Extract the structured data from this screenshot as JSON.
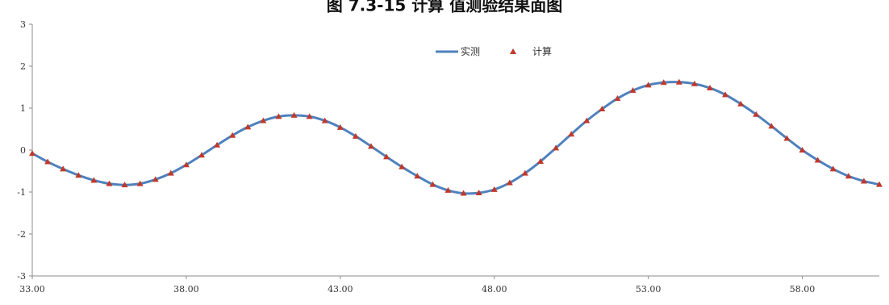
{
  "chart_data": {
    "type": "line",
    "title": "图 7.3-15 计算 值测验结果面图",
    "xlim": [
      33,
      60.5
    ],
    "ylim": [
      -3,
      3
    ],
    "x_ticks": [
      "33.00",
      "38.00",
      "43.00",
      "48.00",
      "53.00",
      "58.00"
    ],
    "y_ticks": [
      "3",
      "2",
      "1",
      "0",
      "-1",
      "-2",
      "-3"
    ],
    "legend_placement": "top-center",
    "grid": false,
    "series": [
      {
        "name": "实测",
        "style": "line",
        "color": "#4f81bd",
        "x": [
          33.0,
          33.5,
          34.0,
          34.5,
          35.0,
          35.5,
          36.0,
          36.5,
          37.0,
          37.5,
          38.0,
          38.5,
          39.0,
          39.5,
          40.0,
          40.5,
          41.0,
          41.5,
          42.0,
          42.5,
          43.0,
          43.5,
          44.0,
          44.5,
          45.0,
          45.5,
          46.0,
          46.5,
          47.0,
          47.5,
          48.0,
          48.5,
          49.0,
          49.5,
          50.0,
          50.5,
          51.0,
          51.5,
          52.0,
          52.5,
          53.0,
          53.5,
          54.0,
          54.5,
          55.0,
          55.5,
          56.0,
          56.5,
          57.0,
          57.5,
          58.0,
          58.5,
          59.0,
          59.5,
          60.0,
          60.5
        ],
        "y": [
          -0.08,
          -0.28,
          -0.45,
          -0.6,
          -0.72,
          -0.8,
          -0.83,
          -0.8,
          -0.7,
          -0.55,
          -0.35,
          -0.12,
          0.12,
          0.35,
          0.55,
          0.7,
          0.8,
          0.83,
          0.8,
          0.7,
          0.54,
          0.33,
          0.09,
          -0.16,
          -0.4,
          -0.62,
          -0.82,
          -0.96,
          -1.03,
          -1.02,
          -0.94,
          -0.78,
          -0.55,
          -0.27,
          0.05,
          0.38,
          0.7,
          0.98,
          1.23,
          1.42,
          1.55,
          1.61,
          1.62,
          1.58,
          1.48,
          1.32,
          1.1,
          0.85,
          0.57,
          0.28,
          0.0,
          -0.24,
          -0.45,
          -0.62,
          -0.74,
          -0.82
        ]
      },
      {
        "name": "计算",
        "style": "triangle-markers",
        "color": "#c0392b",
        "x": [
          33.0,
          33.5,
          34.0,
          34.5,
          35.0,
          35.5,
          36.0,
          36.5,
          37.0,
          37.5,
          38.0,
          38.5,
          39.0,
          39.5,
          40.0,
          40.5,
          41.0,
          41.5,
          42.0,
          42.5,
          43.0,
          43.5,
          44.0,
          44.5,
          45.0,
          45.5,
          46.0,
          46.5,
          47.0,
          47.5,
          48.0,
          48.5,
          49.0,
          49.5,
          50.0,
          50.5,
          51.0,
          51.5,
          52.0,
          52.5,
          53.0,
          53.5,
          54.0,
          54.5,
          55.0,
          55.5,
          56.0,
          56.5,
          57.0,
          57.5,
          58.0,
          58.5,
          59.0,
          59.5,
          60.0,
          60.5
        ],
        "y": [
          -0.08,
          -0.28,
          -0.45,
          -0.6,
          -0.72,
          -0.8,
          -0.83,
          -0.8,
          -0.7,
          -0.55,
          -0.35,
          -0.12,
          0.12,
          0.35,
          0.55,
          0.7,
          0.8,
          0.83,
          0.8,
          0.7,
          0.54,
          0.33,
          0.09,
          -0.16,
          -0.4,
          -0.62,
          -0.82,
          -0.96,
          -1.03,
          -1.02,
          -0.94,
          -0.78,
          -0.55,
          -0.27,
          0.05,
          0.38,
          0.7,
          0.98,
          1.23,
          1.42,
          1.55,
          1.61,
          1.62,
          1.58,
          1.48,
          1.32,
          1.1,
          0.85,
          0.57,
          0.28,
          0.0,
          -0.24,
          -0.45,
          -0.62,
          -0.74,
          -0.82
        ]
      }
    ]
  }
}
